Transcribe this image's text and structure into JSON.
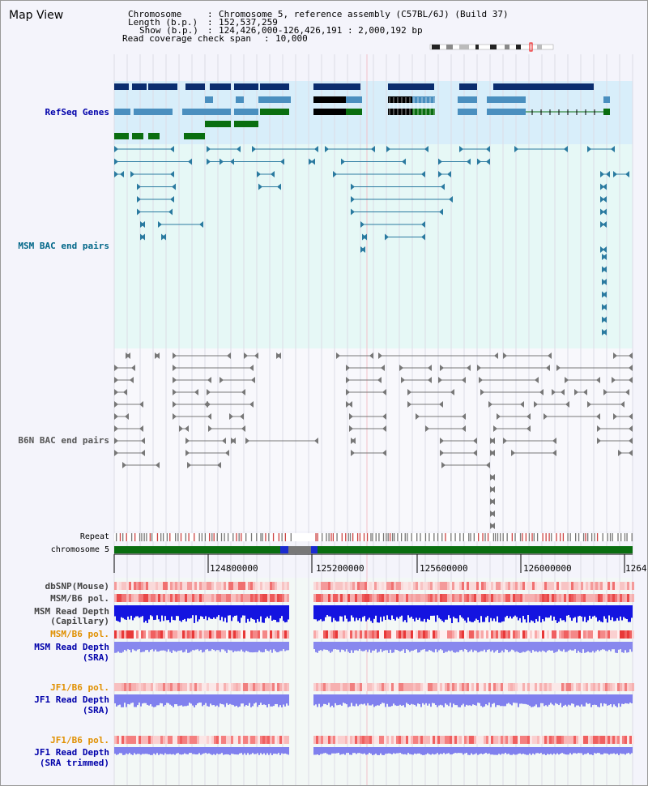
{
  "title": "Map View",
  "info": {
    "chromosome_label": "Chromosome",
    "chromosome_value": "Chromosome 5, reference assembly (C57BL/6J) (Build 37)",
    "length_label": "Length (b.p.)",
    "length_value": "152,537,259",
    "show_label": "Show (b.p.)",
    "show_value": "124,426,000-126,426,191 : 2,000,192 bp",
    "coverage_label": "Read coverage check span",
    "coverage_value": "10,000",
    "sep": ":"
  },
  "tracks": {
    "refseq": "RefSeq Genes",
    "msm_bac": "MSM BAC end pairs",
    "b6n_bac": "B6N BAC end pairs",
    "repeat": "Repeat",
    "chromosome": "chromosome 5",
    "dbsnp": "dbSNP(Mouse)",
    "msm_b6_pol_1": "MSM/B6 pol.",
    "msm_depth_cap_1": "MSM Read Depth",
    "msm_depth_cap_2": "(Capillary)",
    "msm_b6_pol_2": "MSM/B6 pol.",
    "msm_depth_sra_1": "MSM Read Depth",
    "msm_depth_sra_2": "(SRA)",
    "jf1_b6_pol_1": "JF1/B6 pol.",
    "jf1_depth_sra_1": "JF1 Read Depth",
    "jf1_depth_sra_2": "(SRA)",
    "jf1_b6_pol_2": "JF1/B6 pol.",
    "jf1_depth_trim_1": "JF1 Read Depth",
    "jf1_depth_trim_2": "(SRA trimmed)"
  },
  "axis": {
    "ticks": [
      "124800000",
      "125200000",
      "125600000",
      "126000000",
      "1264"
    ]
  },
  "colors": {
    "refseq_bg": "#d8eefa",
    "msm_bg": "#e6f8f6",
    "label_blue": "#0000aa",
    "label_teal": "#006688",
    "label_orange": "#e09000",
    "gene_navy": "#0a2d6e",
    "gene_steel": "#4a8fbf",
    "gene_green": "#0a6e10",
    "chrom_green": "#0a6e10"
  }
}
